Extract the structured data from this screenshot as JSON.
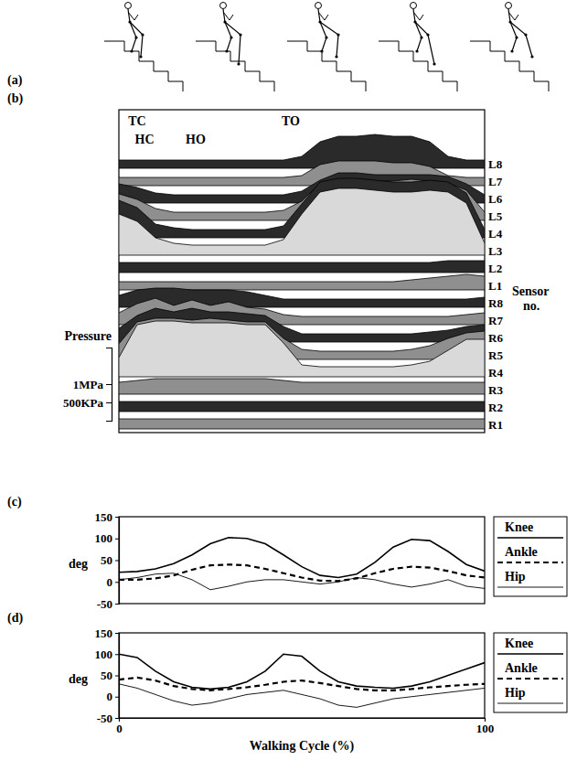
{
  "diagram": {
    "label": "(a)"
  },
  "chart_data": [
    {
      "type": "waterfall",
      "title": "(b)",
      "x": [
        0,
        5,
        10,
        15,
        20,
        25,
        30,
        35,
        40,
        45,
        50,
        55,
        60,
        65,
        70,
        75,
        80,
        85,
        90,
        95,
        100
      ],
      "xlim": [
        0,
        100
      ],
      "ylim": [
        0,
        2000
      ],
      "yticks": [
        {
          "value": 1000,
          "label": "1MPa"
        },
        {
          "value": 500,
          "label": "500KPa"
        }
      ],
      "ylabel": "Pressure",
      "y2label": "Sensor no.",
      "tick_labels": "y",
      "annotations": [
        {
          "text": "TC",
          "x": 5
        },
        {
          "text": "HC",
          "x": 7
        },
        {
          "text": "TO",
          "x": 47
        },
        {
          "text": "HO",
          "x": 21
        }
      ],
      "series": [
        {
          "name": "L8",
          "color": "#2a2a2a",
          "values": [
            0,
            0,
            0,
            0,
            0,
            0,
            0,
            0,
            0,
            0,
            100,
            500,
            650,
            650,
            700,
            650,
            650,
            500,
            100,
            0,
            0
          ]
        },
        {
          "name": "L7",
          "color": "#8f8f8f",
          "values": [
            0,
            0,
            0,
            0,
            0,
            0,
            0,
            0,
            0,
            0,
            50,
            350,
            450,
            450,
            450,
            400,
            400,
            300,
            50,
            0,
            0
          ]
        },
        {
          "name": "L6",
          "color": "#2a2a2a",
          "values": [
            300,
            200,
            50,
            0,
            0,
            0,
            0,
            0,
            0,
            0,
            100,
            400,
            600,
            600,
            550,
            550,
            550,
            550,
            500,
            300,
            0
          ]
        },
        {
          "name": "L5",
          "color": "#8f8f8f",
          "values": [
            500,
            350,
            100,
            0,
            0,
            0,
            0,
            0,
            0,
            50,
            300,
            800,
            900,
            900,
            850,
            850,
            900,
            850,
            800,
            600,
            0
          ]
        },
        {
          "name": "L4",
          "color": "#2a2a2a",
          "values": [
            800,
            600,
            150,
            50,
            0,
            0,
            0,
            0,
            0,
            100,
            700,
            1300,
            1400,
            1400,
            1350,
            1300,
            1300,
            1350,
            1300,
            1000,
            0
          ]
        },
        {
          "name": "L3",
          "color": "#d9d9d9",
          "values": [
            900,
            700,
            250,
            100,
            50,
            50,
            50,
            50,
            50,
            200,
            900,
            1500,
            1600,
            1600,
            1550,
            1500,
            1500,
            1550,
            1500,
            1200,
            100
          ]
        },
        {
          "name": "L2",
          "color": "#2a2a2a",
          "values": [
            50,
            50,
            50,
            50,
            50,
            50,
            50,
            50,
            50,
            50,
            50,
            50,
            50,
            50,
            50,
            50,
            50,
            50,
            100,
            100,
            100
          ]
        },
        {
          "name": "L1",
          "color": "#8f8f8f",
          "values": [
            0,
            0,
            0,
            0,
            0,
            0,
            0,
            0,
            0,
            0,
            0,
            0,
            0,
            0,
            0,
            0,
            50,
            100,
            150,
            200,
            150
          ]
        },
        {
          "name": "R8",
          "color": "#2a2a2a",
          "values": [
            100,
            250,
            300,
            300,
            250,
            250,
            250,
            200,
            100,
            0,
            0,
            0,
            0,
            0,
            0,
            0,
            0,
            0,
            0,
            0,
            50
          ]
        },
        {
          "name": "R7",
          "color": "#8f8f8f",
          "values": [
            100,
            350,
            500,
            300,
            450,
            300,
            400,
            250,
            200,
            50,
            0,
            0,
            0,
            0,
            0,
            0,
            0,
            0,
            0,
            50,
            100
          ]
        },
        {
          "name": "R6",
          "color": "#2a2a2a",
          "values": [
            150,
            500,
            700,
            600,
            700,
            600,
            600,
            550,
            500,
            200,
            0,
            0,
            0,
            0,
            0,
            0,
            0,
            50,
            100,
            200,
            250
          ]
        },
        {
          "name": "R5",
          "color": "#8f8f8f",
          "values": [
            200,
            800,
            900,
            900,
            850,
            900,
            850,
            800,
            800,
            350,
            50,
            0,
            0,
            0,
            0,
            0,
            50,
            150,
            350,
            500,
            550
          ]
        },
        {
          "name": "R4",
          "color": "#d9d9d9",
          "values": [
            300,
            1200,
            1300,
            1300,
            1250,
            1250,
            1250,
            1200,
            1200,
            700,
            100,
            50,
            50,
            50,
            50,
            50,
            100,
            200,
            500,
            800,
            800
          ]
        },
        {
          "name": "R3",
          "color": "#8f8f8f",
          "values": [
            100,
            150,
            200,
            200,
            200,
            200,
            200,
            200,
            200,
            150,
            100,
            100,
            100,
            100,
            100,
            100,
            100,
            100,
            100,
            100,
            100
          ]
        },
        {
          "name": "R2",
          "color": "#2a2a2a",
          "values": [
            50,
            50,
            50,
            50,
            50,
            50,
            50,
            50,
            50,
            50,
            50,
            50,
            50,
            50,
            50,
            50,
            50,
            50,
            50,
            50,
            50
          ]
        },
        {
          "name": "R1",
          "color": "#8f8f8f",
          "values": [
            50,
            50,
            50,
            50,
            50,
            50,
            50,
            50,
            50,
            50,
            50,
            50,
            50,
            50,
            50,
            50,
            50,
            50,
            50,
            50,
            50
          ]
        }
      ]
    },
    {
      "type": "line",
      "title": "(c)",
      "x": [
        0,
        5,
        10,
        15,
        20,
        25,
        30,
        35,
        40,
        45,
        50,
        55,
        60,
        65,
        70,
        75,
        80,
        85,
        90,
        95,
        100
      ],
      "xlim": [
        0,
        100
      ],
      "ylim": [
        -50,
        150
      ],
      "yticks": [
        -50,
        0,
        50,
        100,
        150
      ],
      "ylabel": "deg",
      "legend": "right",
      "tick_labels": "y",
      "series": [
        {
          "name": "Knee",
          "color": "#000000",
          "line_style": "solid",
          "values": [
            22,
            24,
            30,
            42,
            62,
            88,
            102,
            100,
            88,
            62,
            35,
            15,
            10,
            18,
            45,
            80,
            98,
            95,
            70,
            40,
            25
          ]
        },
        {
          "name": "Ankle",
          "color": "#000000",
          "line_style": "dashed",
          "values": [
            5,
            5,
            8,
            15,
            28,
            38,
            40,
            38,
            30,
            20,
            10,
            3,
            2,
            8,
            20,
            30,
            35,
            33,
            25,
            15,
            10
          ]
        },
        {
          "name": "Hip",
          "color": "#000000",
          "line_style": "solid",
          "values": [
            5,
            10,
            18,
            20,
            5,
            -18,
            -10,
            0,
            5,
            5,
            0,
            -5,
            0,
            10,
            5,
            -5,
            -12,
            -5,
            5,
            -10,
            -15
          ]
        }
      ]
    },
    {
      "type": "line",
      "title": "(d)",
      "x": [
        0,
        5,
        10,
        15,
        20,
        25,
        30,
        35,
        40,
        45,
        50,
        55,
        60,
        65,
        70,
        75,
        80,
        85,
        90,
        95,
        100
      ],
      "xlim": [
        0,
        100
      ],
      "ylim": [
        -50,
        150
      ],
      "yticks": [
        -50,
        0,
        50,
        100,
        150
      ],
      "xticks": [
        0,
        100
      ],
      "ylabel": "deg",
      "xlabel": "Walking Cycle (%)",
      "legend": "right",
      "series": [
        {
          "name": "Knee",
          "color": "#000000",
          "line_style": "solid",
          "values": [
            100,
            92,
            60,
            35,
            22,
            18,
            22,
            35,
            60,
            100,
            95,
            60,
            35,
            25,
            22,
            20,
            25,
            35,
            50,
            65,
            80
          ]
        },
        {
          "name": "Ankle",
          "color": "#000000",
          "line_style": "dashed",
          "values": [
            40,
            45,
            38,
            25,
            18,
            15,
            18,
            22,
            28,
            35,
            38,
            32,
            25,
            18,
            15,
            15,
            18,
            22,
            25,
            28,
            30
          ]
        },
        {
          "name": "Hip",
          "color": "#000000",
          "line_style": "solid",
          "values": [
            30,
            20,
            5,
            -10,
            -20,
            -15,
            -5,
            5,
            10,
            15,
            5,
            -5,
            -20,
            -25,
            -15,
            -5,
            0,
            5,
            10,
            15,
            20
          ]
        }
      ]
    }
  ]
}
